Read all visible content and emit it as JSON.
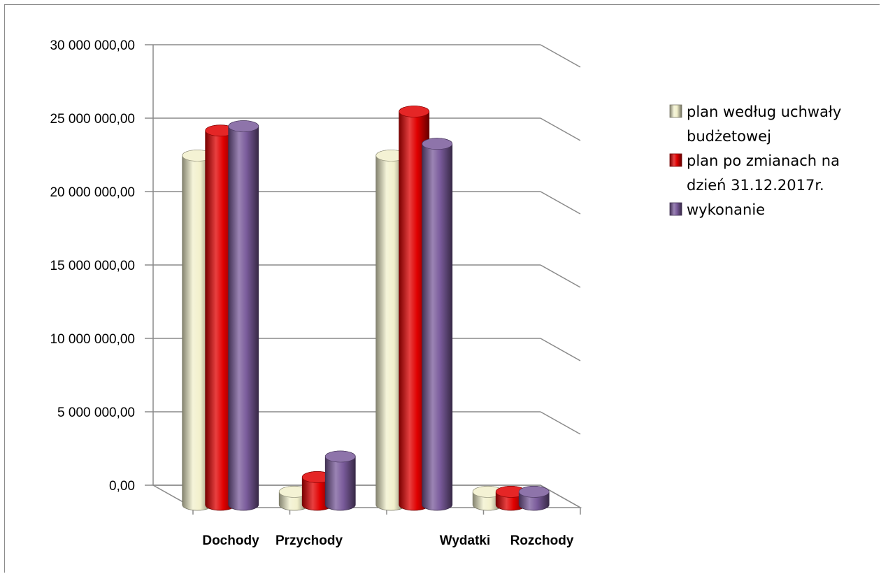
{
  "chart_data": {
    "type": "bar",
    "title": "",
    "xlabel": "",
    "ylabel": "",
    "categories": [
      "Dochody",
      "Przychody",
      "Wydatki",
      "Rozchody"
    ],
    "ylim": [
      0,
      30000000
    ],
    "yticks": [
      0,
      5000000,
      10000000,
      15000000,
      20000000,
      25000000,
      30000000
    ],
    "ytick_labels": [
      "0,00",
      "5 000 000,00",
      "10 000 000,00",
      "15 000 000,00",
      "20 000 000,00",
      "25 000 000,00",
      "30 000 000,00"
    ],
    "series": [
      {
        "name": "plan według uchwały budżetowej",
        "color": "#f2f0cc",
        "values": [
          23500000,
          600000,
          23500000,
          600000
        ]
      },
      {
        "name": "plan po zmianach na dzień 31.12.2017r.",
        "color": "#e00000",
        "values": [
          25200000,
          1600000,
          26500000,
          600000
        ]
      },
      {
        "name": "wykonanie",
        "color": "#7a5b9b",
        "values": [
          25500000,
          3000000,
          24300000,
          600000
        ]
      }
    ],
    "legend": {
      "position": "right",
      "entries": [
        [
          "plan według uchwały",
          "budżetowej"
        ],
        [
          "plan po zmianach na",
          "dzień 31.12.2017r."
        ],
        [
          "wykonanie"
        ]
      ]
    },
    "grid": true,
    "style": "3d-cylinder"
  }
}
